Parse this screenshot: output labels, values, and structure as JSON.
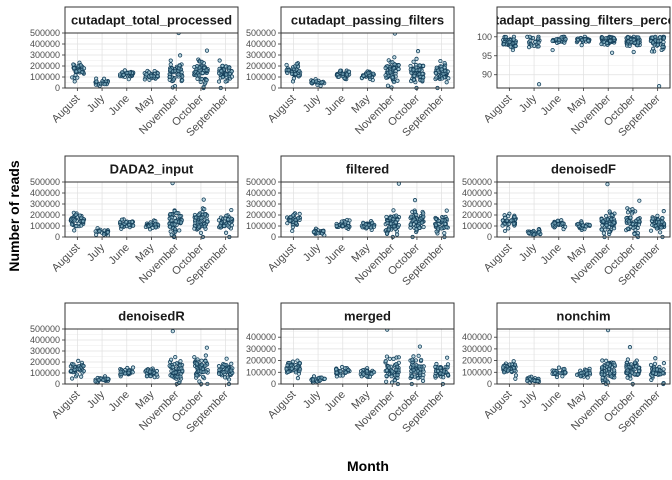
{
  "chart_data": {
    "type": "scatter",
    "style": "faceted jitter strip plot",
    "xlabel": "Month",
    "ylabel": "Number of reads",
    "categories": [
      "August",
      "July",
      "June",
      "May",
      "November",
      "October",
      "September"
    ],
    "grid": true,
    "point_colors": {
      "fill": "#8fbfd0",
      "stroke": "#143f5a"
    },
    "panels": [
      {
        "title": "cutadapt_total_processed",
        "yticks": [
          0,
          100000,
          200000,
          300000,
          400000,
          500000
        ],
        "ylim": [
          0,
          500000
        ],
        "groups": [
          {
            "month": "August",
            "n": 40,
            "median": 160000,
            "spread": 45000,
            "min": 60000,
            "max": 230000
          },
          {
            "month": "July",
            "n": 22,
            "median": 50000,
            "spread": 18000,
            "min": 20000,
            "max": 85000
          },
          {
            "month": "June",
            "n": 30,
            "median": 125000,
            "spread": 25000,
            "min": 80000,
            "max": 160000
          },
          {
            "month": "May",
            "n": 28,
            "median": 115000,
            "spread": 25000,
            "min": 75000,
            "max": 155000
          },
          {
            "month": "November",
            "n": 55,
            "median": 140000,
            "spread": 80000,
            "min": 5000,
            "max": 500000
          },
          {
            "month": "October",
            "n": 55,
            "median": 150000,
            "spread": 75000,
            "min": 0,
            "max": 340000
          },
          {
            "month": "September",
            "n": 45,
            "median": 135000,
            "spread": 60000,
            "min": 0,
            "max": 250000
          }
        ]
      },
      {
        "title": "cutadapt_passing_filters",
        "yticks": [
          0,
          100000,
          200000,
          300000,
          400000,
          500000
        ],
        "ylim": [
          0,
          500000
        ],
        "groups": [
          {
            "month": "August",
            "n": 40,
            "median": 155000,
            "spread": 42000,
            "min": 60000,
            "max": 225000
          },
          {
            "month": "July",
            "n": 22,
            "median": 48000,
            "spread": 17000,
            "min": 20000,
            "max": 80000
          },
          {
            "month": "June",
            "n": 30,
            "median": 120000,
            "spread": 24000,
            "min": 80000,
            "max": 158000
          },
          {
            "month": "May",
            "n": 28,
            "median": 112000,
            "spread": 24000,
            "min": 72000,
            "max": 150000
          },
          {
            "month": "November",
            "n": 55,
            "median": 138000,
            "spread": 78000,
            "min": 5000,
            "max": 495000
          },
          {
            "month": "October",
            "n": 55,
            "median": 148000,
            "spread": 72000,
            "min": 0,
            "max": 335000
          },
          {
            "month": "September",
            "n": 45,
            "median": 132000,
            "spread": 58000,
            "min": 0,
            "max": 245000
          }
        ]
      },
      {
        "title": "cutadapt_passing_filters_percent",
        "yticks": [
          90,
          95,
          100
        ],
        "ylim": [
          86.5,
          101
        ],
        "groups": [
          {
            "month": "August",
            "n": 40,
            "median": 98.8,
            "spread": 0.9,
            "min": 96.5,
            "max": 100
          },
          {
            "month": "July",
            "n": 22,
            "median": 98.6,
            "spread": 1.2,
            "min": 87.5,
            "max": 100
          },
          {
            "month": "June",
            "n": 30,
            "median": 99.2,
            "spread": 0.6,
            "min": 96.5,
            "max": 100
          },
          {
            "month": "May",
            "n": 28,
            "median": 99.3,
            "spread": 0.5,
            "min": 97.8,
            "max": 100
          },
          {
            "month": "November",
            "n": 55,
            "median": 99.0,
            "spread": 0.9,
            "min": 95.8,
            "max": 100
          },
          {
            "month": "October",
            "n": 55,
            "median": 99.0,
            "spread": 1.0,
            "min": 96.0,
            "max": 100
          },
          {
            "month": "September",
            "n": 45,
            "median": 98.7,
            "spread": 1.6,
            "min": 87.0,
            "max": 100
          }
        ]
      },
      {
        "title": "DADA2_input",
        "yticks": [
          0,
          100000,
          200000,
          300000,
          400000,
          500000
        ],
        "ylim": [
          0,
          500000
        ],
        "groups": [
          {
            "month": "August",
            "n": 40,
            "median": 150000,
            "spread": 42000,
            "min": 60000,
            "max": 220000
          },
          {
            "month": "July",
            "n": 22,
            "median": 45000,
            "spread": 16000,
            "min": 15000,
            "max": 80000
          },
          {
            "month": "June",
            "n": 30,
            "median": 120000,
            "spread": 24000,
            "min": 75000,
            "max": 160000
          },
          {
            "month": "May",
            "n": 28,
            "median": 108000,
            "spread": 24000,
            "min": 70000,
            "max": 150000
          },
          {
            "month": "November",
            "n": 55,
            "median": 135000,
            "spread": 78000,
            "min": 0,
            "max": 490000
          },
          {
            "month": "October",
            "n": 55,
            "median": 150000,
            "spread": 72000,
            "min": 0,
            "max": 340000
          },
          {
            "month": "September",
            "n": 45,
            "median": 130000,
            "spread": 58000,
            "min": 0,
            "max": 245000
          }
        ]
      },
      {
        "title": "filtered",
        "yticks": [
          0,
          100000,
          200000,
          300000,
          400000,
          500000
        ],
        "ylim": [
          0,
          500000
        ],
        "groups": [
          {
            "month": "August",
            "n": 40,
            "median": 145000,
            "spread": 40000,
            "min": 55000,
            "max": 215000
          },
          {
            "month": "July",
            "n": 22,
            "median": 42000,
            "spread": 15000,
            "min": 15000,
            "max": 75000
          },
          {
            "month": "June",
            "n": 30,
            "median": 115000,
            "spread": 23000,
            "min": 75000,
            "max": 155000
          },
          {
            "month": "May",
            "n": 28,
            "median": 105000,
            "spread": 23000,
            "min": 65000,
            "max": 145000
          },
          {
            "month": "November",
            "n": 55,
            "median": 130000,
            "spread": 76000,
            "min": 0,
            "max": 485000
          },
          {
            "month": "October",
            "n": 55,
            "median": 145000,
            "spread": 70000,
            "min": 0,
            "max": 335000
          },
          {
            "month": "September",
            "n": 45,
            "median": 125000,
            "spread": 56000,
            "min": 0,
            "max": 240000
          }
        ]
      },
      {
        "title": "denoisedF",
        "yticks": [
          0,
          100000,
          200000,
          300000,
          400000,
          500000
        ],
        "ylim": [
          0,
          500000
        ],
        "groups": [
          {
            "month": "August",
            "n": 40,
            "median": 143000,
            "spread": 40000,
            "min": 55000,
            "max": 212000
          },
          {
            "month": "July",
            "n": 22,
            "median": 41000,
            "spread": 15000,
            "min": 15000,
            "max": 72000
          },
          {
            "month": "June",
            "n": 30,
            "median": 113000,
            "spread": 23000,
            "min": 72000,
            "max": 152000
          },
          {
            "month": "May",
            "n": 28,
            "median": 103000,
            "spread": 22000,
            "min": 65000,
            "max": 142000
          },
          {
            "month": "November",
            "n": 55,
            "median": 128000,
            "spread": 75000,
            "min": 0,
            "max": 480000
          },
          {
            "month": "October",
            "n": 55,
            "median": 143000,
            "spread": 70000,
            "min": 0,
            "max": 330000
          },
          {
            "month": "September",
            "n": 45,
            "median": 123000,
            "spread": 55000,
            "min": 0,
            "max": 235000
          }
        ]
      },
      {
        "title": "denoisedR",
        "yticks": [
          0,
          100000,
          200000,
          300000,
          400000,
          500000
        ],
        "ylim": [
          0,
          500000
        ],
        "groups": [
          {
            "month": "August",
            "n": 40,
            "median": 140000,
            "spread": 40000,
            "min": 50000,
            "max": 210000
          },
          {
            "month": "July",
            "n": 22,
            "median": 40000,
            "spread": 15000,
            "min": 12000,
            "max": 70000
          },
          {
            "month": "June",
            "n": 30,
            "median": 110000,
            "spread": 22000,
            "min": 70000,
            "max": 150000
          },
          {
            "month": "May",
            "n": 28,
            "median": 100000,
            "spread": 22000,
            "min": 62000,
            "max": 140000
          },
          {
            "month": "November",
            "n": 55,
            "median": 125000,
            "spread": 75000,
            "min": 0,
            "max": 480000
          },
          {
            "month": "October",
            "n": 55,
            "median": 140000,
            "spread": 68000,
            "min": 0,
            "max": 330000
          },
          {
            "month": "September",
            "n": 45,
            "median": 120000,
            "spread": 55000,
            "min": 0,
            "max": 230000
          }
        ]
      },
      {
        "title": "merged",
        "yticks": [
          0,
          100000,
          200000,
          300000,
          400000
        ],
        "ylim": [
          0,
          470000
        ],
        "groups": [
          {
            "month": "August",
            "n": 40,
            "median": 135000,
            "spread": 38000,
            "min": 50000,
            "max": 200000
          },
          {
            "month": "July",
            "n": 22,
            "median": 38000,
            "spread": 14000,
            "min": 12000,
            "max": 65000
          },
          {
            "month": "June",
            "n": 30,
            "median": 105000,
            "spread": 22000,
            "min": 65000,
            "max": 145000
          },
          {
            "month": "May",
            "n": 28,
            "median": 95000,
            "spread": 21000,
            "min": 60000,
            "max": 135000
          },
          {
            "month": "November",
            "n": 55,
            "median": 120000,
            "spread": 72000,
            "min": 0,
            "max": 465000
          },
          {
            "month": "October",
            "n": 55,
            "median": 135000,
            "spread": 65000,
            "min": 0,
            "max": 320000
          },
          {
            "month": "September",
            "n": 45,
            "median": 115000,
            "spread": 52000,
            "min": 0,
            "max": 225000
          }
        ]
      },
      {
        "title": "nonchim",
        "yticks": [
          0,
          100000,
          200000,
          300000,
          400000
        ],
        "ylim": [
          0,
          470000
        ],
        "groups": [
          {
            "month": "August",
            "n": 40,
            "median": 130000,
            "spread": 36000,
            "min": 45000,
            "max": 195000
          },
          {
            "month": "July",
            "n": 22,
            "median": 36000,
            "spread": 13000,
            "min": 10000,
            "max": 62000
          },
          {
            "month": "June",
            "n": 30,
            "median": 100000,
            "spread": 21000,
            "min": 60000,
            "max": 140000
          },
          {
            "month": "May",
            "n": 28,
            "median": 92000,
            "spread": 20000,
            "min": 55000,
            "max": 130000
          },
          {
            "month": "November",
            "n": 55,
            "median": 115000,
            "spread": 70000,
            "min": 0,
            "max": 460000
          },
          {
            "month": "October",
            "n": 55,
            "median": 130000,
            "spread": 64000,
            "min": 0,
            "max": 315000
          },
          {
            "month": "September",
            "n": 45,
            "median": 110000,
            "spread": 50000,
            "min": 0,
            "max": 220000
          }
        ]
      }
    ]
  }
}
